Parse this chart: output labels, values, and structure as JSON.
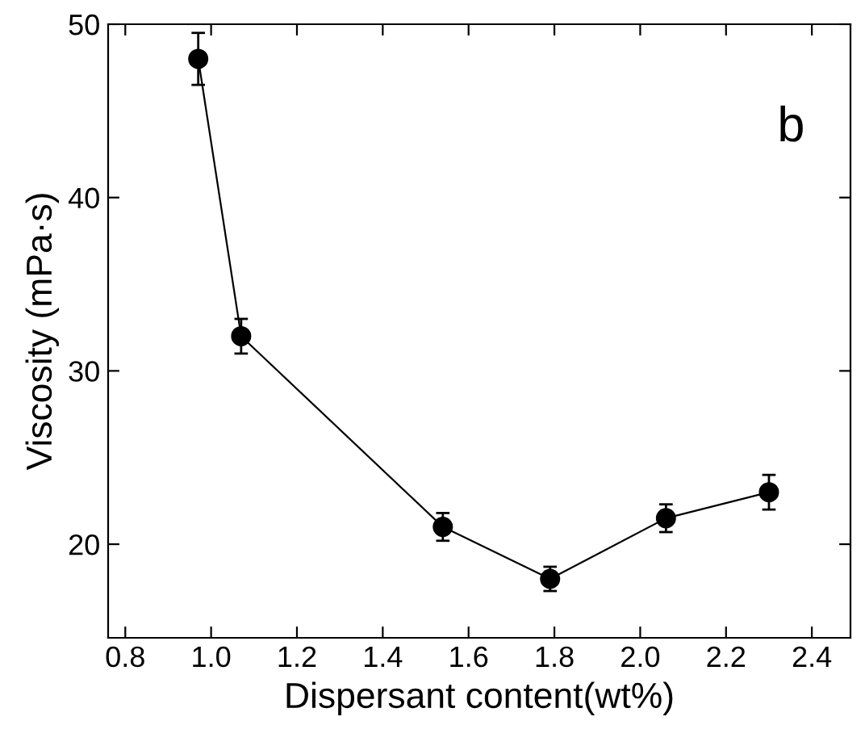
{
  "chart_data": {
    "type": "line",
    "xlabel": "Dispersant content(wt%)",
    "ylabel": "Viscosity (mPa·s)",
    "x": [
      0.97,
      1.07,
      1.54,
      1.79,
      2.06,
      2.3
    ],
    "values": [
      48,
      32,
      21,
      18,
      21.5,
      23
    ],
    "errors": [
      1.5,
      1,
      0.8,
      0.7,
      0.8,
      1
    ],
    "color": "#000000",
    "marker": "circle",
    "line_style": "solid",
    "xlim": [
      0.76,
      2.49
    ],
    "xticks": [
      0.8,
      {
        "value": 1,
        "label": "1.0"
      },
      1.2,
      1.4,
      1.6,
      1.8,
      {
        "value": 2,
        "label": "2.0"
      },
      2.2,
      2.4
    ],
    "ylim": [
      14.6,
      50
    ],
    "yticks": [
      20,
      30,
      40,
      50
    ],
    "annotations": [
      "b"
    ],
    "grid": false,
    "legend": false
  }
}
